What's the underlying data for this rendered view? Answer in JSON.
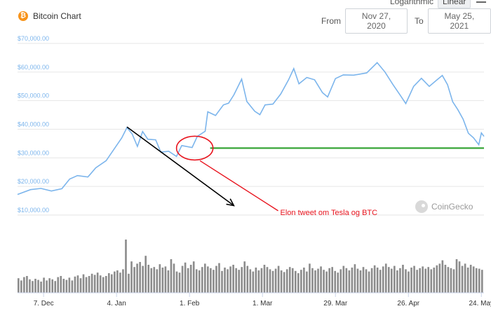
{
  "header": {
    "title": "Bitcoin Chart",
    "scale_options": [
      "Logarithmic",
      "Linear"
    ],
    "active_scale": "Linear",
    "from_label": "From",
    "from_value": "Nov 27, 2020",
    "to_label": "To",
    "to_value": "May 25, 2021"
  },
  "watermark": "CoinGecko",
  "colors": {
    "price_line": "#7cb5ec",
    "volume_bars": "#8c8c8c",
    "support_line": "#2ca02c",
    "annotation": "#e8141e",
    "trend_arrow": "#000000"
  },
  "chart_data": {
    "type": "line",
    "x_range": [
      "2020-11-27",
      "2021-05-25"
    ],
    "y_ticks": [
      "$10,000.00",
      "$20,000.00",
      "$30,000.00",
      "$40,000.00",
      "$50,000.00",
      "$60,000.00",
      "$70,000.00"
    ],
    "ylim": [
      10000,
      70000
    ],
    "x_ticks": [
      "7. Dec",
      "4. Jan",
      "1. Feb",
      "1. Mar",
      "29. Mar",
      "26. Apr",
      "24. May"
    ],
    "series": [
      {
        "values": [
          [
            "2020-11-27",
            17200
          ],
          [
            "2020-12-02",
            18900
          ],
          [
            "2020-12-06",
            19300
          ],
          [
            "2020-12-10",
            18400
          ],
          [
            "2020-12-14",
            19200
          ],
          [
            "2020-12-17",
            22600
          ],
          [
            "2020-12-20",
            23800
          ],
          [
            "2020-12-24",
            23300
          ],
          [
            "2020-12-27",
            26500
          ],
          [
            "2020-12-31",
            29000
          ],
          [
            "2021-01-03",
            33000
          ],
          [
            "2021-01-06",
            37000
          ],
          [
            "2021-01-08",
            40600
          ],
          [
            "2021-01-10",
            38300
          ],
          [
            "2021-01-12",
            34000
          ],
          [
            "2021-01-14",
            39200
          ],
          [
            "2021-01-16",
            36500
          ],
          [
            "2021-01-19",
            36300
          ],
          [
            "2021-01-21",
            32000
          ],
          [
            "2021-01-24",
            32300
          ],
          [
            "2021-01-27",
            30500
          ],
          [
            "2021-01-29",
            34300
          ],
          [
            "2021-02-02",
            33600
          ],
          [
            "2021-02-04",
            37500
          ],
          [
            "2021-02-07",
            39300
          ],
          [
            "2021-02-08",
            46100
          ],
          [
            "2021-02-11",
            44800
          ],
          [
            "2021-02-14",
            48500
          ],
          [
            "2021-02-16",
            49100
          ],
          [
            "2021-02-18",
            52000
          ],
          [
            "2021-02-21",
            57500
          ],
          [
            "2021-02-23",
            49700
          ],
          [
            "2021-02-26",
            46300
          ],
          [
            "2021-02-28",
            45100
          ],
          [
            "2021-03-02",
            48500
          ],
          [
            "2021-03-05",
            48800
          ],
          [
            "2021-03-08",
            52300
          ],
          [
            "2021-03-11",
            57300
          ],
          [
            "2021-03-13",
            61200
          ],
          [
            "2021-03-15",
            55900
          ],
          [
            "2021-03-18",
            58100
          ],
          [
            "2021-03-21",
            57300
          ],
          [
            "2021-03-24",
            52800
          ],
          [
            "2021-03-26",
            51300
          ],
          [
            "2021-03-29",
            57700
          ],
          [
            "2021-04-01",
            59000
          ],
          [
            "2021-04-05",
            58900
          ],
          [
            "2021-04-10",
            59700
          ],
          [
            "2021-04-14",
            63300
          ],
          [
            "2021-04-17",
            60000
          ],
          [
            "2021-04-20",
            55700
          ],
          [
            "2021-04-23",
            51700
          ],
          [
            "2021-04-25",
            49000
          ],
          [
            "2021-04-28",
            55000
          ],
          [
            "2021-05-01",
            57800
          ],
          [
            "2021-05-04",
            55000
          ],
          [
            "2021-05-07",
            57300
          ],
          [
            "2021-05-09",
            58800
          ],
          [
            "2021-05-11",
            55600
          ],
          [
            "2021-05-13",
            49600
          ],
          [
            "2021-05-15",
            46800
          ],
          [
            "2021-05-17",
            43500
          ],
          [
            "2021-05-19",
            38600
          ],
          [
            "2021-05-21",
            37000
          ],
          [
            "2021-05-23",
            34600
          ],
          [
            "2021-05-24",
            38700
          ],
          [
            "2021-05-25",
            37500
          ]
        ]
      }
    ],
    "volume_relative": [
      0.26,
      0.22,
      0.28,
      0.3,
      0.24,
      0.21,
      0.25,
      0.23,
      0.2,
      0.27,
      0.22,
      0.26,
      0.24,
      0.21,
      0.28,
      0.3,
      0.25,
      0.23,
      0.27,
      0.22,
      0.29,
      0.31,
      0.26,
      0.33,
      0.28,
      0.3,
      0.34,
      0.32,
      0.36,
      0.31,
      0.28,
      0.3,
      0.35,
      0.33,
      0.38,
      0.4,
      0.36,
      0.42,
      0.95,
      0.34,
      0.56,
      0.46,
      0.52,
      0.55,
      0.48,
      0.66,
      0.5,
      0.44,
      0.46,
      0.42,
      0.51,
      0.45,
      0.47,
      0.4,
      0.6,
      0.52,
      0.38,
      0.36,
      0.48,
      0.54,
      0.44,
      0.5,
      0.56,
      0.42,
      0.4,
      0.46,
      0.52,
      0.47,
      0.44,
      0.41,
      0.48,
      0.53,
      0.39,
      0.45,
      0.42,
      0.47,
      0.5,
      0.44,
      0.41,
      0.46,
      0.56,
      0.48,
      0.42,
      0.38,
      0.45,
      0.4,
      0.44,
      0.5,
      0.46,
      0.42,
      0.39,
      0.43,
      0.48,
      0.4,
      0.37,
      0.42,
      0.46,
      0.44,
      0.39,
      0.35,
      0.41,
      0.45,
      0.38,
      0.52,
      0.44,
      0.4,
      0.43,
      0.47,
      0.41,
      0.38,
      0.44,
      0.46,
      0.39,
      0.36,
      0.42,
      0.48,
      0.44,
      0.4,
      0.45,
      0.51,
      0.43,
      0.4,
      0.46,
      0.42,
      0.38,
      0.44,
      0.49,
      0.45,
      0.41,
      0.47,
      0.52,
      0.46,
      0.43,
      0.48,
      0.4,
      0.44,
      0.5,
      0.42,
      0.38,
      0.45,
      0.48,
      0.41,
      0.44,
      0.47,
      0.43,
      0.46,
      0.42,
      0.45,
      0.49,
      0.52,
      0.58,
      0.5,
      0.46,
      0.44,
      0.42,
      0.6,
      0.56,
      0.48,
      0.52,
      0.45,
      0.5,
      0.47,
      0.44,
      0.43,
      0.41
    ],
    "annotations": {
      "text": "Elon tweet om Tesla og BTC",
      "support_level": 33400,
      "circle_center": [
        "2021-02-03",
        33400
      ],
      "trend_start": [
        "2021-01-08",
        40800
      ],
      "trend_end": [
        "2021-02-18",
        13300
      ],
      "pointer_start": [
        "2021-02-05",
        29000
      ],
      "pointer_end": [
        "2021-03-07",
        11500
      ],
      "text_anchor": [
        "2021-03-07",
        12000
      ]
    }
  }
}
